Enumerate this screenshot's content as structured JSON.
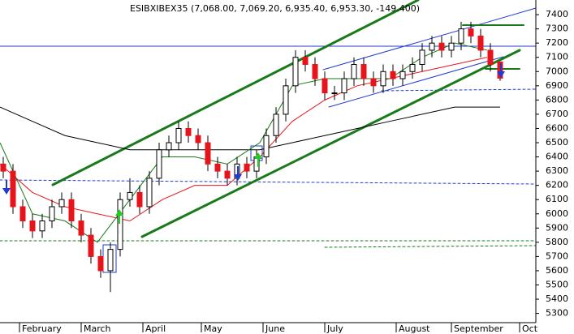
{
  "chart_data": {
    "type": "candlestick",
    "title": "ESIBXIBEX35 (7,068.00, 7,069.20, 6,935.40, 6,953.30, -149.400)",
    "x": [
      1,
      4,
      7,
      10,
      13,
      16,
      19,
      22,
      25,
      28,
      31,
      34,
      37,
      40,
      43,
      46,
      49,
      52,
      55,
      58,
      61,
      64,
      67,
      70,
      73,
      76,
      79,
      82,
      85,
      88,
      91,
      94,
      97,
      100,
      103,
      106,
      109,
      112,
      115,
      118,
      121,
      124,
      127,
      130,
      133,
      136,
      139,
      142,
      145,
      148,
      151,
      154
    ],
    "open": [
      6350,
      6300,
      6050,
      5950,
      5880,
      5950,
      6050,
      6100,
      5950,
      5850,
      5700,
      5600,
      5750,
      6100,
      6150,
      6050,
      6250,
      6450,
      6500,
      6600,
      6550,
      6500,
      6350,
      6300,
      6250,
      6350,
      6300,
      6400,
      6550,
      6700,
      6900,
      7100,
      7050,
      6950,
      6850,
      6850,
      6950,
      7050,
      6950,
      6900,
      7000,
      6950,
      7000,
      7050,
      7150,
      7200,
      7150,
      7200,
      7300,
      7250,
      7150,
      7068
    ],
    "high": [
      6400,
      6350,
      6100,
      6000,
      6000,
      6100,
      6150,
      6150,
      6000,
      5900,
      5750,
      5800,
      6150,
      6250,
      6200,
      6300,
      6500,
      6550,
      6650,
      6650,
      6600,
      6550,
      6400,
      6350,
      6400,
      6400,
      6450,
      6600,
      6750,
      6950,
      7150,
      7150,
      7100,
      7000,
      6900,
      7000,
      7100,
      7100,
      7000,
      7050,
      7050,
      7050,
      7100,
      7200,
      7250,
      7250,
      7250,
      7350,
      7350,
      7300,
      7200,
      7069.2
    ],
    "low": [
      6250,
      6000,
      5900,
      5830,
      5830,
      5900,
      6000,
      5900,
      5800,
      5650,
      5550,
      5450,
      5700,
      6050,
      6000,
      6000,
      6200,
      6400,
      6450,
      6500,
      6450,
      6300,
      6250,
      6200,
      6200,
      6250,
      6250,
      6350,
      6500,
      6650,
      6850,
      7000,
      6900,
      6800,
      6800,
      6800,
      6900,
      6900,
      6850,
      6850,
      6900,
      6900,
      6950,
      7000,
      7100,
      7100,
      7100,
      7150,
      7200,
      7100,
      7000,
      6935.4
    ],
    "close": [
      6300,
      6050,
      5950,
      5880,
      5950,
      6050,
      6100,
      5950,
      5850,
      5700,
      5600,
      5750,
      6100,
      6150,
      6050,
      6250,
      6450,
      6500,
      6600,
      6550,
      6500,
      6350,
      6300,
      6250,
      6350,
      6300,
      6400,
      6550,
      6700,
      6900,
      7100,
      7050,
      6950,
      6850,
      6850,
      6950,
      7050,
      6950,
      6900,
      7000,
      6950,
      7000,
      7050,
      7150,
      7200,
      7150,
      7200,
      7300,
      7250,
      7150,
      7050,
      6953.3
    ],
    "up_color": "#ffffff",
    "down_color": "#e8141c",
    "lines": [
      {
        "color": "#000000",
        "x": [
          0,
          10,
          20,
          30,
          40,
          50,
          60,
          70,
          80,
          90,
          100,
          110,
          120,
          130,
          140,
          154
        ],
        "values": [
          6750,
          6650,
          6550,
          6500,
          6450,
          6450,
          6450,
          6450,
          6450,
          6500,
          6550,
          6600,
          6650,
          6700,
          6750,
          6750
        ]
      },
      {
        "color": "#e8141c",
        "x": [
          0,
          10,
          20,
          30,
          40,
          50,
          60,
          70,
          80,
          90,
          100,
          110,
          120,
          130,
          140,
          150
        ],
        "values": [
          6350,
          6150,
          6050,
          6000,
          5950,
          6100,
          6200,
          6200,
          6400,
          6650,
          6800,
          6900,
          6950,
          7000,
          7050,
          7100
        ]
      },
      {
        "color": "#1a7a1a",
        "x": [
          0,
          10,
          20,
          30,
          40,
          50,
          60,
          70,
          80,
          90,
          100,
          110,
          120,
          130,
          140,
          150
        ],
        "values": [
          6500,
          6000,
          5950,
          5800,
          6100,
          6400,
          6400,
          6350,
          6500,
          6900,
          6950,
          6950,
          6950,
          7100,
          7200,
          7150
        ]
      }
    ],
    "xlim": [
      0,
      165
    ],
    "ylim": [
      5235,
      7503
    ],
    "xticks": [
      {
        "value": 6,
        "label": "February"
      },
      {
        "value": 25,
        "label": "March"
      },
      {
        "value": 44,
        "label": "April"
      },
      {
        "value": 62,
        "label": "May"
      },
      {
        "value": 81,
        "label": "June"
      },
      {
        "value": 100,
        "label": "July"
      },
      {
        "value": 122,
        "label": "August"
      },
      {
        "value": 139,
        "label": "September"
      },
      {
        "value": 160,
        "label": "Oct"
      }
    ],
    "yticks": [
      5300,
      5400,
      5500,
      5600,
      5700,
      5800,
      5900,
      6000,
      6100,
      6200,
      6300,
      6400,
      6500,
      6600,
      6700,
      6800,
      6900,
      7000,
      7100,
      7200,
      7300,
      7400
    ]
  }
}
